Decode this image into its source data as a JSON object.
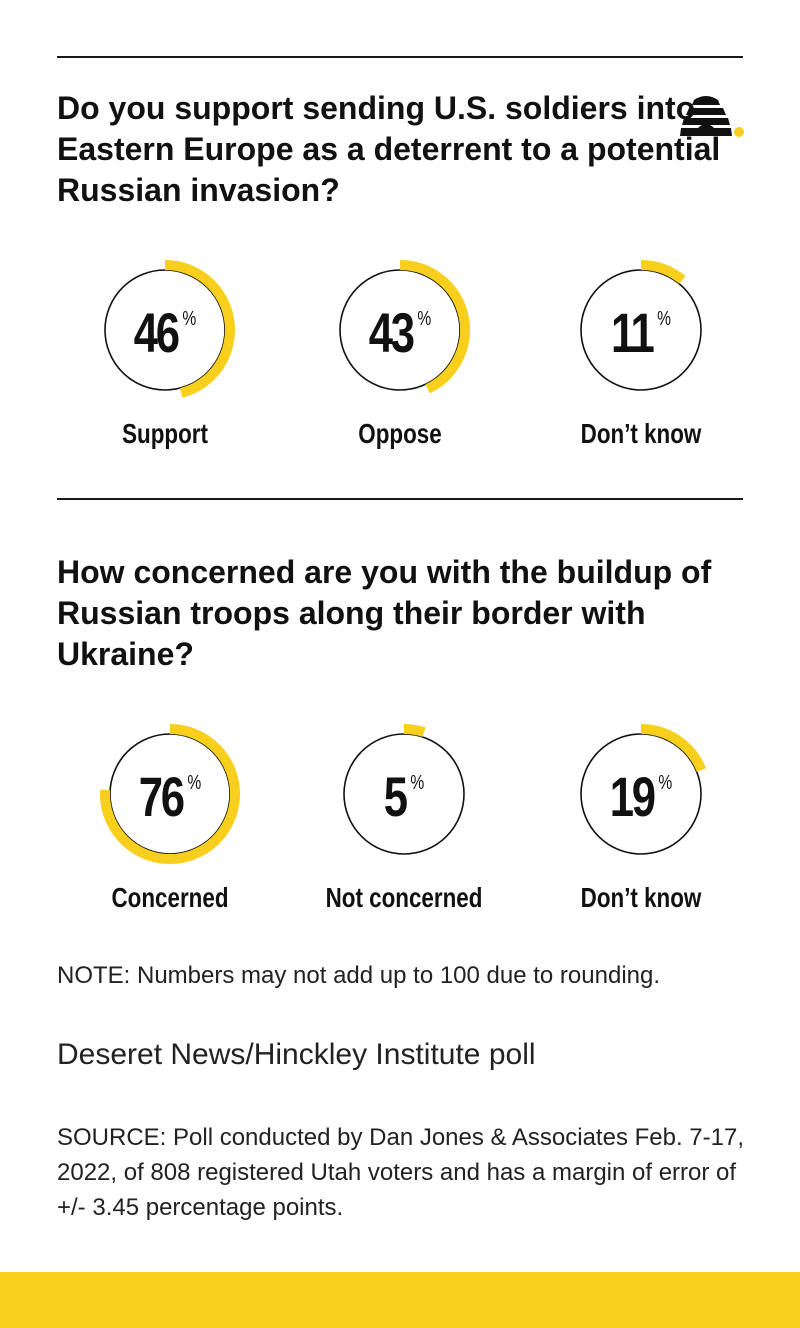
{
  "colors": {
    "accent": "#f7cf1c",
    "text": "#111111",
    "rule": "#1a1a1a",
    "footer": "#f7cf1c"
  },
  "logo": {
    "icon": "beehive-icon"
  },
  "chart_data": [
    {
      "type": "pie",
      "title": "Do you support sending U.S. soldiers into Eastern Europe as a deterrent to a potential Russian invasion?",
      "categories": [
        "Support",
        "Oppose",
        "Don’t know"
      ],
      "values": [
        46,
        43,
        11
      ],
      "unit": "%"
    },
    {
      "type": "pie",
      "title": "How concerned are you with the buildup of Russian troops along their border with Ukraine?",
      "categories": [
        "Concerned",
        "Not concerned",
        "Don’t know"
      ],
      "values": [
        76,
        5,
        19
      ],
      "unit": "%"
    }
  ],
  "note": "NOTE: Numbers may not add up to 100 due to rounding.",
  "poll_name": "Deseret News/Hinckley Institute poll",
  "source": "SOURCE: Poll conducted by Dan Jones & Associates Feb. 7-17, 2022, of 808 registered Utah voters and has a margin of error of +/- 3.45 percentage points."
}
